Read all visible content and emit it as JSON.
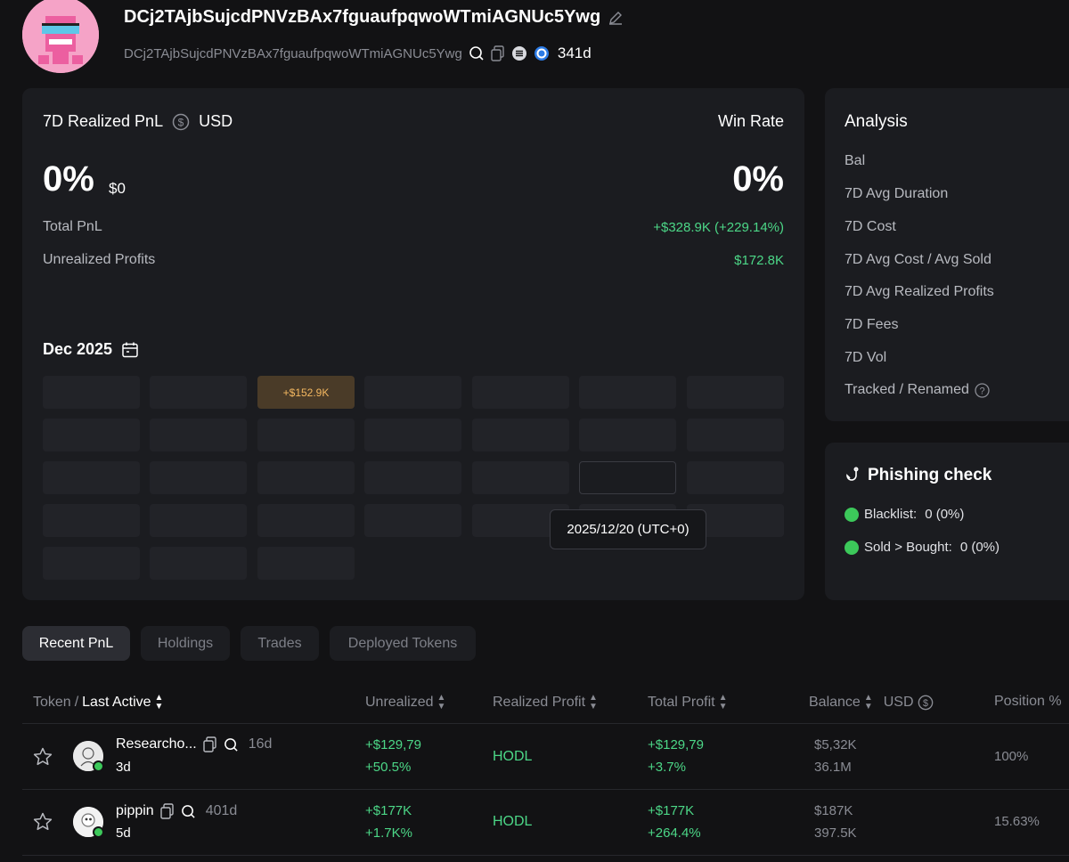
{
  "wallet": {
    "title": "DCj2TAjbSujcdPNVzBAx7fguaufpqwoWTmiAGNUc5Ywg",
    "address": "DCj2TAjbSujcdPNVzBAx7fguaufpqwoWTmiAGNUc5Ywg",
    "age": "341d"
  },
  "pnl": {
    "title": "7D Realized PnL",
    "currency": "USD",
    "percent": "0%",
    "amount": "$0",
    "win_rate_label": "Win Rate",
    "win_rate": "0%",
    "total_pnl_label": "Total PnL",
    "total_pnl_value": "+$328.9K (+229.14%)",
    "unrealized_label": "Unrealized Profits",
    "unrealized_value": "$172.8K"
  },
  "calendar": {
    "month": "Dec 2025",
    "profit_cell": "+$152.9K",
    "tooltip": "2025/12/20 (UTC+0)"
  },
  "analysis": {
    "title": "Analysis",
    "items": [
      "Bal",
      "7D Avg Duration",
      "7D Cost",
      "7D Avg Cost / Avg Sold",
      "7D Avg Realized Profits",
      "7D Fees",
      "7D Vol",
      "Tracked / Renamed"
    ]
  },
  "phishing": {
    "title": "Phishing check",
    "items": [
      {
        "label": "Blacklist:",
        "value": "0 (0%)"
      },
      {
        "label": "Sold > Bought:",
        "value": "0 (0%)"
      }
    ]
  },
  "tabs": [
    "Recent PnL",
    "Holdings",
    "Trades",
    "Deployed Tokens"
  ],
  "table": {
    "headers": {
      "token": "Token",
      "slash": "/",
      "last_active": "Last Active",
      "unrealized": "Unrealized",
      "realized": "Realized Profit",
      "total": "Total Profit",
      "balance": "Balance",
      "usd": "USD",
      "position": "Position %"
    },
    "rows": [
      {
        "name": "Researcho...",
        "age": "16d",
        "last_active": "3d",
        "unrealized_usd": "+$129,79",
        "unrealized_pct": "+50.5%",
        "realized": "HODL",
        "total_usd": "+$129,79",
        "total_pct": "+3.7%",
        "balance_usd": "$5,32K",
        "balance_amt": "36.1M",
        "position": "100%"
      },
      {
        "name": "pippin",
        "age": "401d",
        "last_active": "5d",
        "unrealized_usd": "+$177K",
        "unrealized_pct": "+1.7K%",
        "realized": "HODL",
        "total_usd": "+$177K",
        "total_pct": "+264.4%",
        "balance_usd": "$187K",
        "balance_amt": "397.5K",
        "position": "15.63%"
      }
    ]
  }
}
